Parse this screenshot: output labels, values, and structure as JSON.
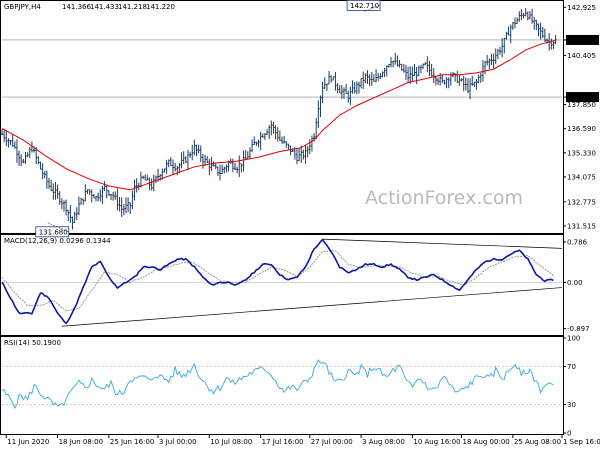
{
  "chart_data": [
    {
      "type": "ohlc",
      "header": {
        "symbol": "GBPJPY,H4",
        "open": "141.366",
        "high": "141.433",
        "low": "141.218",
        "close": "141.220"
      },
      "ylim": [
        131.2,
        143.2
      ],
      "y_ticks": [
        "142.925",
        "141.220",
        "140.405",
        "138.240",
        "137.850",
        "136.590",
        "135.330",
        "134.075",
        "132.775",
        "131.515"
      ],
      "y_tick_values": [
        142.925,
        141.22,
        140.405,
        138.24,
        137.85,
        136.59,
        135.33,
        134.075,
        132.775,
        131.515
      ],
      "highlighted_prices": [
        "141.220",
        "138.240"
      ],
      "horizontal_levels": [
        141.22,
        138.24
      ],
      "annotations": [
        {
          "text": "142.710",
          "x": 168,
          "y": 142.71
        },
        {
          "text": "131.680",
          "x": 20,
          "y": 131.68
        }
      ],
      "price_path": [
        [
          0,
          136.3
        ],
        [
          5,
          135.8
        ],
        [
          10,
          134.8
        ],
        [
          14,
          135.6
        ],
        [
          18,
          134.5
        ],
        [
          22,
          133.6
        ],
        [
          26,
          133.1
        ],
        [
          30,
          132.5
        ],
        [
          33,
          131.7
        ],
        [
          36,
          132.6
        ],
        [
          40,
          133.4
        ],
        [
          44,
          133.0
        ],
        [
          48,
          133.5
        ],
        [
          52,
          133.1
        ],
        [
          56,
          132.4
        ],
        [
          60,
          132.6
        ],
        [
          62,
          133.5
        ],
        [
          66,
          134.0
        ],
        [
          70,
          133.6
        ],
        [
          74,
          134.3
        ],
        [
          78,
          134.8
        ],
        [
          82,
          134.6
        ],
        [
          86,
          135.0
        ],
        [
          90,
          135.6
        ],
        [
          94,
          135.0
        ],
        [
          98,
          134.6
        ],
        [
          102,
          134.3
        ],
        [
          106,
          134.8
        ],
        [
          110,
          134.6
        ],
        [
          114,
          135.0
        ],
        [
          118,
          135.8
        ],
        [
          122,
          136.3
        ],
        [
          126,
          136.8
        ],
        [
          130,
          136.0
        ],
        [
          134,
          135.6
        ],
        [
          138,
          135.1
        ],
        [
          142,
          135.3
        ],
        [
          146,
          136.3
        ],
        [
          148,
          137.8
        ],
        [
          150,
          138.8
        ],
        [
          154,
          139.3
        ],
        [
          158,
          138.6
        ],
        [
          162,
          138.3
        ],
        [
          166,
          138.8
        ],
        [
          170,
          139.3
        ],
        [
          174,
          139.0
        ],
        [
          178,
          139.6
        ],
        [
          182,
          140.2
        ],
        [
          186,
          139.8
        ],
        [
          190,
          139.3
        ],
        [
          194,
          139.5
        ],
        [
          198,
          139.9
        ],
        [
          202,
          139.4
        ],
        [
          206,
          139.0
        ],
        [
          210,
          139.4
        ],
        [
          214,
          139.1
        ],
        [
          218,
          138.7
        ],
        [
          222,
          139.0
        ],
        [
          226,
          140.0
        ],
        [
          230,
          140.3
        ],
        [
          234,
          140.9
        ],
        [
          238,
          141.9
        ],
        [
          242,
          142.4
        ],
        [
          245,
          142.7
        ],
        [
          248,
          142.2
        ],
        [
          252,
          141.6
        ],
        [
          256,
          141.1
        ],
        [
          259,
          141.2
        ]
      ],
      "ma_path": [
        [
          0,
          136.6
        ],
        [
          10,
          136.0
        ],
        [
          20,
          135.2
        ],
        [
          30,
          134.5
        ],
        [
          40,
          134.0
        ],
        [
          50,
          133.6
        ],
        [
          60,
          133.4
        ],
        [
          70,
          133.8
        ],
        [
          80,
          134.2
        ],
        [
          90,
          134.6
        ],
        [
          100,
          134.8
        ],
        [
          110,
          134.9
        ],
        [
          120,
          135.1
        ],
        [
          130,
          135.4
        ],
        [
          140,
          135.6
        ],
        [
          146,
          136.0
        ],
        [
          150,
          136.5
        ],
        [
          158,
          137.3
        ],
        [
          166,
          137.8
        ],
        [
          174,
          138.2
        ],
        [
          182,
          138.6
        ],
        [
          190,
          139.0
        ],
        [
          198,
          139.2
        ],
        [
          206,
          139.4
        ],
        [
          214,
          139.4
        ],
        [
          222,
          139.5
        ],
        [
          230,
          139.7
        ],
        [
          238,
          140.2
        ],
        [
          245,
          140.7
        ],
        [
          252,
          141.0
        ],
        [
          259,
          141.2
        ]
      ],
      "x_ticks": [
        "11 Jun 2020",
        "18 Jun 08:00",
        "25 Jun 16:00",
        "3 Jul 00:00",
        "10 Jul 08:00",
        "17 Jul 16:00",
        "27 Jul 00:00",
        "3 Aug 08:00",
        "10 Aug 16:00",
        "18 Aug 00:00",
        "25 Aug 08:00",
        "1 Sep 16:00"
      ],
      "x_tick_bars": [
        2,
        26,
        50,
        73,
        97,
        121,
        144,
        168,
        192,
        215,
        239,
        262
      ]
    },
    {
      "type": "line",
      "label": "MACD(12,26,9) 0.0296 0.1344",
      "ylim": [
        -1.0,
        0.9
      ],
      "y_ticks": [
        "0.786",
        "0.00",
        "-0.897"
      ],
      "y_tick_values": [
        0.786,
        0.0,
        -0.897
      ],
      "macd_path": [
        [
          0,
          0.0
        ],
        [
          4,
          -0.3
        ],
        [
          8,
          -0.6
        ],
        [
          14,
          -0.6
        ],
        [
          18,
          -0.2
        ],
        [
          22,
          -0.3
        ],
        [
          26,
          -0.6
        ],
        [
          30,
          -0.8
        ],
        [
          34,
          -0.5
        ],
        [
          38,
          -0.1
        ],
        [
          42,
          0.3
        ],
        [
          46,
          0.4
        ],
        [
          50,
          0.1
        ],
        [
          54,
          -0.1
        ],
        [
          58,
          0.0
        ],
        [
          62,
          0.1
        ],
        [
          66,
          0.3
        ],
        [
          70,
          0.3
        ],
        [
          74,
          0.25
        ],
        [
          78,
          0.35
        ],
        [
          82,
          0.45
        ],
        [
          86,
          0.45
        ],
        [
          90,
          0.3
        ],
        [
          94,
          0.1
        ],
        [
          98,
          -0.05
        ],
        [
          102,
          0.0
        ],
        [
          106,
          0.0
        ],
        [
          110,
          -0.05
        ],
        [
          114,
          0.05
        ],
        [
          118,
          0.2
        ],
        [
          122,
          0.35
        ],
        [
          126,
          0.35
        ],
        [
          130,
          0.15
        ],
        [
          134,
          0.05
        ],
        [
          138,
          0.1
        ],
        [
          142,
          0.3
        ],
        [
          146,
          0.65
        ],
        [
          150,
          0.82
        ],
        [
          154,
          0.6
        ],
        [
          158,
          0.3
        ],
        [
          162,
          0.2
        ],
        [
          166,
          0.25
        ],
        [
          170,
          0.35
        ],
        [
          174,
          0.35
        ],
        [
          178,
          0.3
        ],
        [
          182,
          0.35
        ],
        [
          186,
          0.25
        ],
        [
          190,
          0.1
        ],
        [
          194,
          0.05
        ],
        [
          198,
          0.1
        ],
        [
          202,
          0.15
        ],
        [
          206,
          0.05
        ],
        [
          210,
          -0.05
        ],
        [
          214,
          -0.15
        ],
        [
          218,
          0.05
        ],
        [
          222,
          0.25
        ],
        [
          226,
          0.4
        ],
        [
          230,
          0.45
        ],
        [
          234,
          0.45
        ],
        [
          238,
          0.55
        ],
        [
          242,
          0.62
        ],
        [
          246,
          0.45
        ],
        [
          250,
          0.15
        ],
        [
          254,
          0.03
        ],
        [
          258,
          0.05
        ]
      ],
      "signal_path": [
        [
          0,
          0.1
        ],
        [
          6,
          -0.2
        ],
        [
          12,
          -0.45
        ],
        [
          18,
          -0.45
        ],
        [
          24,
          -0.35
        ],
        [
          30,
          -0.55
        ],
        [
          36,
          -0.5
        ],
        [
          42,
          -0.15
        ],
        [
          48,
          0.2
        ],
        [
          54,
          0.15
        ],
        [
          60,
          0.0
        ],
        [
          66,
          0.1
        ],
        [
          72,
          0.25
        ],
        [
          78,
          0.3
        ],
        [
          84,
          0.38
        ],
        [
          90,
          0.38
        ],
        [
          96,
          0.2
        ],
        [
          102,
          0.03
        ],
        [
          108,
          0.0
        ],
        [
          114,
          0.0
        ],
        [
          120,
          0.15
        ],
        [
          126,
          0.3
        ],
        [
          132,
          0.25
        ],
        [
          138,
          0.12
        ],
        [
          144,
          0.3
        ],
        [
          150,
          0.6
        ],
        [
          156,
          0.62
        ],
        [
          162,
          0.35
        ],
        [
          168,
          0.28
        ],
        [
          174,
          0.32
        ],
        [
          180,
          0.33
        ],
        [
          186,
          0.3
        ],
        [
          192,
          0.18
        ],
        [
          198,
          0.1
        ],
        [
          204,
          0.12
        ],
        [
          210,
          0.02
        ],
        [
          216,
          -0.05
        ],
        [
          222,
          0.1
        ],
        [
          228,
          0.3
        ],
        [
          234,
          0.4
        ],
        [
          240,
          0.5
        ],
        [
          246,
          0.52
        ],
        [
          252,
          0.32
        ],
        [
          258,
          0.13
        ]
      ],
      "trendlines": [
        {
          "from": [
            28,
            -0.85
          ],
          "to": [
            262,
            -0.1
          ]
        },
        {
          "from": [
            150,
            0.84
          ],
          "to": [
            262,
            0.66
          ]
        }
      ]
    },
    {
      "type": "line",
      "label": "RSI(14) 50.1900",
      "ylim": [
        0,
        100
      ],
      "y_ticks": [
        "100",
        "70",
        "30",
        "0"
      ],
      "y_tick_values": [
        100,
        70,
        30,
        0
      ],
      "levels": [
        70,
        30
      ],
      "rsi_path": [
        [
          0,
          45
        ],
        [
          3,
          38
        ],
        [
          6,
          30
        ],
        [
          9,
          40
        ],
        [
          12,
          35
        ],
        [
          15,
          50
        ],
        [
          18,
          42
        ],
        [
          21,
          36
        ],
        [
          24,
          30
        ],
        [
          27,
          26
        ],
        [
          30,
          35
        ],
        [
          33,
          45
        ],
        [
          36,
          52
        ],
        [
          39,
          48
        ],
        [
          42,
          55
        ],
        [
          45,
          50
        ],
        [
          48,
          46
        ],
        [
          51,
          52
        ],
        [
          54,
          40
        ],
        [
          57,
          44
        ],
        [
          60,
          58
        ],
        [
          63,
          56
        ],
        [
          66,
          60
        ],
        [
          69,
          54
        ],
        [
          72,
          62
        ],
        [
          75,
          58
        ],
        [
          78,
          55
        ],
        [
          81,
          66
        ],
        [
          84,
          60
        ],
        [
          87,
          64
        ],
        [
          90,
          72
        ],
        [
          93,
          58
        ],
        [
          96,
          50
        ],
        [
          99,
          44
        ],
        [
          102,
          48
        ],
        [
          105,
          58
        ],
        [
          108,
          52
        ],
        [
          111,
          56
        ],
        [
          114,
          60
        ],
        [
          117,
          64
        ],
        [
          120,
          66
        ],
        [
          123,
          68
        ],
        [
          126,
          62
        ],
        [
          129,
          52
        ],
        [
          132,
          44
        ],
        [
          135,
          48
        ],
        [
          138,
          46
        ],
        [
          141,
          52
        ],
        [
          144,
          58
        ],
        [
          147,
          72
        ],
        [
          150,
          76
        ],
        [
          153,
          64
        ],
        [
          156,
          52
        ],
        [
          159,
          56
        ],
        [
          162,
          66
        ],
        [
          165,
          60
        ],
        [
          168,
          68
        ],
        [
          171,
          62
        ],
        [
          174,
          70
        ],
        [
          177,
          64
        ],
        [
          180,
          58
        ],
        [
          183,
          66
        ],
        [
          186,
          70
        ],
        [
          189,
          54
        ],
        [
          192,
          48
        ],
        [
          195,
          58
        ],
        [
          198,
          52
        ],
        [
          201,
          44
        ],
        [
          204,
          50
        ],
        [
          207,
          60
        ],
        [
          210,
          48
        ],
        [
          213,
          42
        ],
        [
          216,
          46
        ],
        [
          219,
          52
        ],
        [
          222,
          58
        ],
        [
          225,
          62
        ],
        [
          228,
          56
        ],
        [
          231,
          66
        ],
        [
          234,
          58
        ],
        [
          237,
          64
        ],
        [
          240,
          74
        ],
        [
          243,
          60
        ],
        [
          246,
          66
        ],
        [
          249,
          58
        ],
        [
          252,
          46
        ],
        [
          255,
          52
        ],
        [
          258,
          50
        ]
      ]
    }
  ],
  "watermark": "ActionForex.com"
}
